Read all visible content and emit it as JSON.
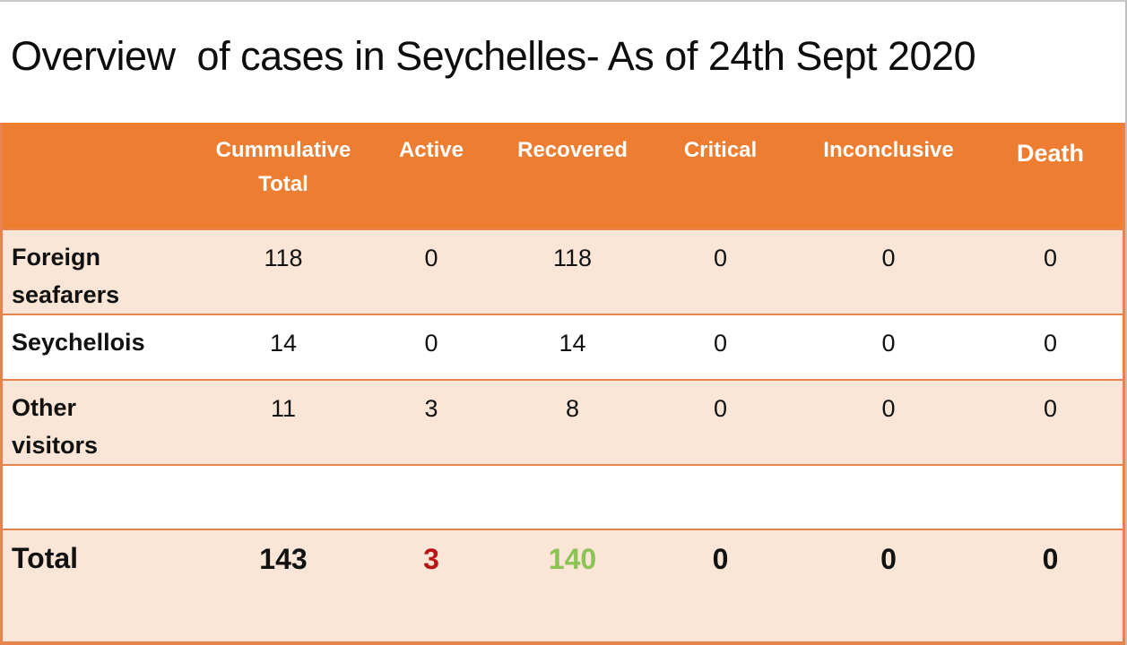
{
  "slide": {
    "title": "Overview  of cases in Seychelles- As of 24th Sept 2020"
  },
  "table": {
    "columns": [
      "Cummulative Total",
      "Active",
      "Recovered",
      "Critical",
      "Inconclusive",
      "Death"
    ],
    "rows": [
      {
        "label": "Foreign seafarers",
        "values": [
          "118",
          "0",
          "118",
          "0",
          "0",
          "0"
        ]
      },
      {
        "label": "Seychellois",
        "values": [
          "14",
          "0",
          "14",
          "0",
          "0",
          "0"
        ]
      },
      {
        "label": "Other visitors",
        "values": [
          "11",
          "3",
          "8",
          "0",
          "0",
          "0"
        ]
      },
      {
        "label": "",
        "values": [
          "",
          "",
          "",
          "",
          "",
          ""
        ]
      },
      {
        "label": "Total",
        "values": [
          "143",
          "3",
          "140",
          "0",
          "0",
          "0"
        ]
      }
    ]
  },
  "colors": {
    "header_bg": "#ED7D31",
    "row_tint": "#FBE5D6",
    "table_border": "#E8834E",
    "total_active_red": "#B81414",
    "total_recovered_green": "#8CC355"
  }
}
